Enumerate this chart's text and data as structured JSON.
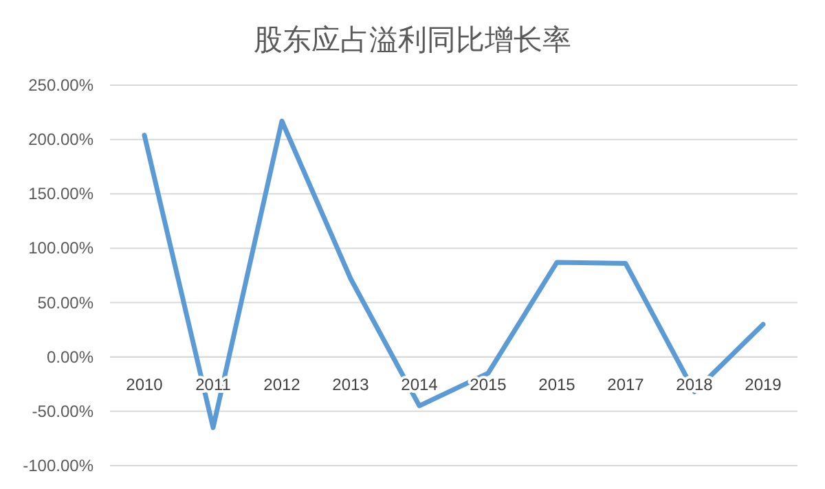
{
  "chart_data": {
    "type": "line",
    "title": "股东应占溢利同比增长率",
    "categories": [
      "2010",
      "2011",
      "2012",
      "2013",
      "2014",
      "2015",
      "2015",
      "2017",
      "2018",
      "2019"
    ],
    "series": [
      {
        "color": "#5b9bd5",
        "values": [
          204,
          -65,
          217,
          72,
          -45,
          -15,
          87,
          86,
          -32,
          30
        ]
      }
    ],
    "ylim": [
      -100,
      250
    ],
    "yticks": [
      {
        "value": -100,
        "label": "-100.00%"
      },
      {
        "value": -50,
        "label": "-50.00%"
      },
      {
        "value": 0,
        "label": "0.00%"
      },
      {
        "value": 50,
        "label": "50.00%"
      },
      {
        "value": 100,
        "label": "100.00%"
      },
      {
        "value": 150,
        "label": "150.00%"
      },
      {
        "value": 200,
        "label": "200.00%"
      },
      {
        "value": 250,
        "label": "250.00%"
      }
    ],
    "grid": "y"
  }
}
